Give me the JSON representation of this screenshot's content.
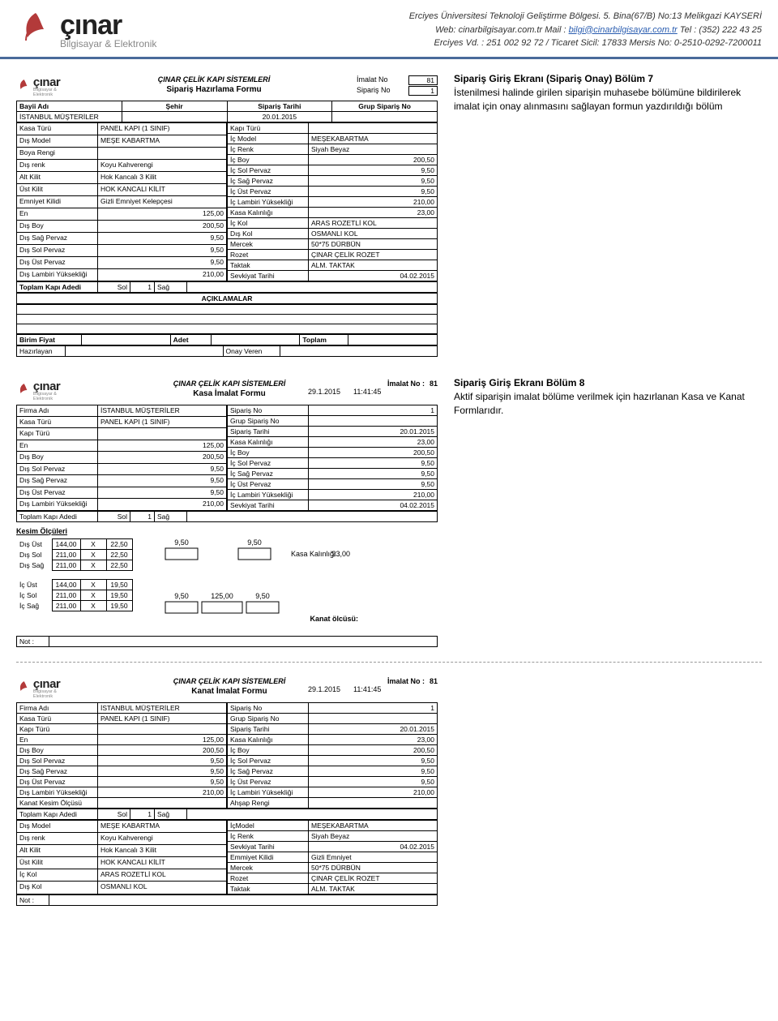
{
  "header": {
    "logo_main": "çınar",
    "logo_sub": "Bilgisayar & Elektronik",
    "line1": "Erciyes Üniversitesi Teknoloji Geliştirme Bölgesi. 5. Bina(67/B) No:13 Melikgazi KAYSERİ",
    "web_label": "Web:",
    "web": "cinarbilgisayar.com.tr",
    "mail_label": "Mail :",
    "mail": "bilgi@cinarbilgisayar.com.tr",
    "tel_label": "Tel :",
    "tel": "(352) 222 43 25",
    "line3": "Erciyes Vd. : 251 002 92 72  / Ticaret Sicil: 17833 Mersis No: 0-2510-0292-7200011"
  },
  "desc7": {
    "title": "Sipariş Giriş Ekranı (Sipariş Onay)  Bölüm 7",
    "body": "İstenilmesi halinde girilen siparişin muhasebe bölümüne bildirilerek imalat için onay alınmasını sağlayan formun yazdırıldığı bölüm"
  },
  "desc8": {
    "title": "Sipariş Giriş Ekranı Bölüm 8",
    "body": "Aktif siparişin imalat bölüme verilmek için hazırlanan Kasa ve Kanat Formlarıdır."
  },
  "form1": {
    "system": "ÇINAR ÇELİK KAPI SİSTEMLERİ",
    "name": "Sipariş Hazırlama Formu",
    "imalat_no_lbl": "İmalat No",
    "imalat_no": "81",
    "siparis_no_lbl": "Sipariş No",
    "siparis_no": "1",
    "bayi_lbl": "Bayii Adı",
    "sehir_lbl": "Şehir",
    "tarih_lbl": "Sipariş Tarihi",
    "grup_lbl": "Grup Sipariş No",
    "bayi": "İSTANBUL MÜŞTERİLER",
    "sehir": "",
    "tarih": "20.01.2015",
    "grup": "",
    "left": [
      [
        "Kasa Türü",
        "PANEL KAPI (1 SINIF)"
      ],
      [
        "Dış Model",
        "MEŞE KABARTMA"
      ],
      [
        "Boya Rengi",
        ""
      ],
      [
        "Dış renk",
        "Koyu Kahverengi"
      ],
      [
        "Alt Kilit",
        "Hok Kancalı 3 Kilit"
      ],
      [
        "Üst Kilit",
        "HOK KANCALI KİLİT"
      ],
      [
        "Emniyet Kilidi",
        "Gizli Emniyet Kelepçesi"
      ],
      [
        "En",
        "125,00"
      ],
      [
        "Dış Boy",
        "200,50"
      ],
      [
        "Dış Sağ Pervaz",
        "9,50"
      ],
      [
        "Dış Sol Pervaz",
        "9,50"
      ],
      [
        "Dış Üst Pervaz",
        "9,50"
      ],
      [
        "Dış Lambiri Yüksekliği",
        "210,00"
      ]
    ],
    "right": [
      [
        "Kapı Türü",
        ""
      ],
      [
        "İç Model",
        "MEŞEKABARTMA"
      ],
      [
        "İç Renk",
        "Siyah Beyaz"
      ],
      [
        "İç Boy",
        "200,50"
      ],
      [
        "İç Sol Pervaz",
        "9,50"
      ],
      [
        "İç Sağ Pervaz",
        "9,50"
      ],
      [
        "İç Üst Pervaz",
        "9,50"
      ],
      [
        "İç Lambiri Yüksekliği",
        "210,00"
      ],
      [
        "Kasa Kalınlığı",
        "23,00"
      ],
      [
        "İç Kol",
        "ARAS ROZETLİ KOL"
      ],
      [
        "Dış Kol",
        "OSMANLI KOL"
      ],
      [
        "Mercek",
        "50*75 DÜRBÜN"
      ],
      [
        "Rozet",
        "ÇINAR ÇELİK ROZET"
      ],
      [
        "Taktak",
        "ALM. TAKTAK"
      ],
      [
        "Sevkiyat Tarihi",
        "04.02.2015"
      ]
    ],
    "toplam_lbl": "Toplam Kapı Adedi",
    "sol_lbl": "Sol",
    "sol_val": "1",
    "sag_lbl": "Sağ",
    "aciklamalar": "AÇIKLAMALAR",
    "birim": "Birim Fiyat",
    "adet": "Adet",
    "toplam": "Toplam",
    "hazirlayan": "Hazırlayan",
    "onay": "Onay Veren"
  },
  "form2": {
    "system": "ÇINAR ÇELİK KAPI SİSTEMLERİ",
    "name": "Kasa İmalat Formu",
    "date": "29.1.2015",
    "time": "11:41:45",
    "imalat_lbl": "İmalat No :",
    "imalat": "81",
    "left": [
      [
        "Firma Adı",
        "İSTANBUL MÜŞTERİLER"
      ],
      [
        "Kasa Türü",
        "PANEL KAPI (1 SINIF)"
      ],
      [
        "Kapı Türü",
        ""
      ],
      [
        "En",
        "125,00"
      ],
      [
        "Dış Boy",
        "200,50"
      ],
      [
        "Dış Sol Pervaz",
        "9,50"
      ],
      [
        "Dış Sağ Pervaz",
        "9,50"
      ],
      [
        "Dış Üst Pervaz",
        "9,50"
      ],
      [
        "Dış Lambiri Yüksekliği",
        "210,00"
      ]
    ],
    "right": [
      [
        "Sipariş No",
        "1"
      ],
      [
        "Grup Sipariş No",
        ""
      ],
      [
        "Sipariş Tarihi",
        "20.01.2015"
      ],
      [
        "Kasa Kalınlığı",
        "23,00"
      ],
      [
        "İç Boy",
        "200,50"
      ],
      [
        "İç Sol Pervaz",
        "9,50"
      ],
      [
        "İç Sağ Pervaz",
        "9,50"
      ],
      [
        "İç Üst Pervaz",
        "9,50"
      ],
      [
        "İç Lambiri Yüksekliği",
        "210,00"
      ],
      [
        "Sevkiyat Tarihi",
        "04.02.2015"
      ]
    ],
    "toplam_lbl": "Toplam Kapı Adedi",
    "sol_lbl": "Sol",
    "sol_val": "1",
    "sag_lbl": "Sağ",
    "kesim_title": "Kesim Ölçüleri",
    "kesim_dis": [
      [
        "Dış Üst",
        "144,00",
        "X",
        "22,50"
      ],
      [
        "Dış Sol",
        "211,00",
        "X",
        "22,50"
      ],
      [
        "Dış Sağ",
        "211,00",
        "X",
        "22,50"
      ]
    ],
    "kesim_ic": [
      [
        "İç Üst",
        "144,00",
        "X",
        "19,50"
      ],
      [
        "İç Sol",
        "211,00",
        "X",
        "19,50"
      ],
      [
        "İç Sağ",
        "211,00",
        "X",
        "19,50"
      ]
    ],
    "diag_top_l": "9,50",
    "diag_top_r": "9,50",
    "diag_kk": "Kasa Kalınlığı :",
    "diag_kk_v": "23,00",
    "diag_bot_l": "9,50",
    "diag_bot_m": "125,00",
    "diag_bot_r": "9,50",
    "kanat": "Kanat ölcüsü:",
    "not": "Not :"
  },
  "form3": {
    "system": "ÇINAR ÇELİK KAPI SİSTEMLERİ",
    "name": "Kanat İmalat Formu",
    "date": "29.1.2015",
    "time": "11:41:45",
    "imalat_lbl": "İmalat No :",
    "imalat": "81",
    "left": [
      [
        "Firma Adı",
        "İSTANBUL MÜŞTERİLER"
      ],
      [
        "Kasa Türü",
        "PANEL KAPI (1 SINIF)"
      ],
      [
        "Kapı Türü",
        ""
      ],
      [
        "En",
        "125,00"
      ],
      [
        "Dış Boy",
        "200,50"
      ],
      [
        "Dış Sol Pervaz",
        "9,50"
      ],
      [
        "Dış Sağ Pervaz",
        "9,50"
      ],
      [
        "Dış Üst Pervaz",
        "9,50"
      ],
      [
        "Dış Lambiri Yüksekliği",
        "210,00"
      ],
      [
        "Kanat Kesim Ölçüsü",
        ""
      ]
    ],
    "right": [
      [
        "Sipariş No",
        "1"
      ],
      [
        "Grup Sipariş No",
        ""
      ],
      [
        "Sipariş Tarihi",
        "20.01.2015"
      ],
      [
        "Kasa Kalınlığı",
        "23,00"
      ],
      [
        "İç Boy",
        "200,50"
      ],
      [
        "İç Sol Pervaz",
        "9,50"
      ],
      [
        "İç Sağ Pervaz",
        "9,50"
      ],
      [
        "İç Üst Pervaz",
        "9,50"
      ],
      [
        "İç Lambiri Yüksekliği",
        "210,00"
      ],
      [
        "Ahşap Rengi",
        ""
      ]
    ],
    "toplam_lbl": "Toplam Kapı Adedi",
    "sol_lbl": "Sol",
    "sol_val": "1",
    "sag_lbl": "Sağ",
    "left2": [
      [
        "Dış Model",
        "MEŞE KABARTMA"
      ],
      [
        "Dış renk",
        "Koyu Kahverengi"
      ],
      [
        "Alt Kilit",
        "Hok Kancalı 3 Kilit"
      ],
      [
        "Üst Kilit",
        "HOK KANCALI KİLİT"
      ],
      [
        "İç Kol",
        "ARAS ROZETLİ KOL"
      ],
      [
        "Dış Kol",
        "OSMANLI KOL"
      ]
    ],
    "right2": [
      [
        "İçModel",
        "MEŞEKABARTMA"
      ],
      [
        "İç Renk",
        "Siyah Beyaz"
      ],
      [
        "Sevkiyat Tarihi",
        "04.02.2015"
      ],
      [
        "Emmiyet Kilidi",
        "Gizli Emniyet"
      ],
      [
        "Mercek",
        "50*75 DÜRBÜN"
      ],
      [
        "Rozet",
        "ÇINAR ÇELİK ROZET"
      ],
      [
        "Taktak",
        "ALM. TAKTAK"
      ]
    ],
    "not": "Not :"
  }
}
